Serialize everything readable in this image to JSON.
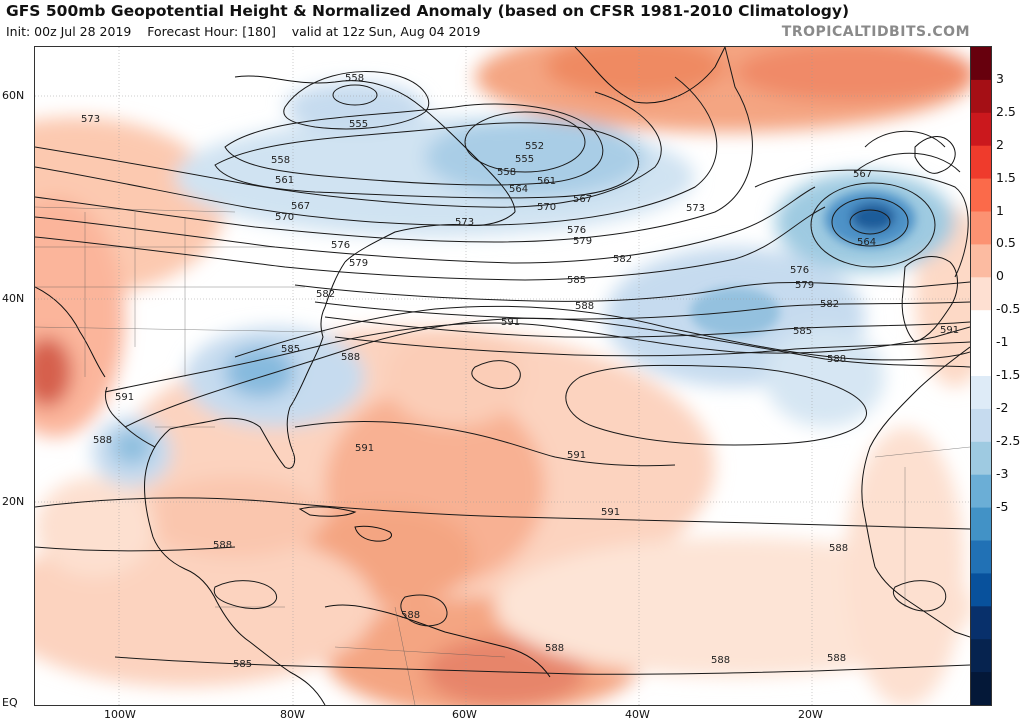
{
  "header": {
    "title": "GFS 500mb Geopotential Height & Normalized Anomaly (based on CFSR 1981-2010 Climatology)",
    "init": "Init: 00z Jul 28 2019",
    "forecast_hour": "Forecast Hour: [180]",
    "valid": "valid at 12z Sun, Aug 04 2019",
    "brand": "TROPICALTIDBITS.COM"
  },
  "axes": {
    "lat_labels": [
      "60N",
      "40N",
      "20N",
      "EQ"
    ],
    "lon_labels": [
      "100W",
      "80W",
      "60W",
      "40W",
      "20W"
    ]
  },
  "colorbar": {
    "labels": [
      "3",
      "2.5",
      "2",
      "1.5",
      "1",
      "0.5",
      "0",
      "-0.5",
      "-1",
      "-1.5",
      "-2",
      "-2.5",
      "-3",
      "-5"
    ],
    "range": [
      -5,
      3.5
    ],
    "colors": [
      "#67000d",
      "#a50f15",
      "#cb181d",
      "#ef3b2c",
      "#fb6a4a",
      "#fc9272",
      "#fcbba1",
      "#fee0d2",
      "#ffffff",
      "#ffffff",
      "#deebf7",
      "#c6dbef",
      "#9ecae1",
      "#6baed6",
      "#4292c6",
      "#2171b5",
      "#08519c",
      "#08306b",
      "#06234f",
      "#041838"
    ]
  },
  "contours": {
    "labels": [
      "558",
      "555",
      "552",
      "555",
      "558",
      "561",
      "564",
      "567",
      "570",
      "573",
      "576",
      "579",
      "582",
      "585",
      "588",
      "591",
      "567",
      "564",
      "573",
      "576",
      "579",
      "582",
      "585",
      "588",
      "591",
      "588",
      "591",
      "591",
      "591",
      "588",
      "588",
      "588",
      "585",
      "588",
      "588",
      "588",
      "573",
      "558",
      "561",
      "567",
      "570",
      "576",
      "579",
      "582",
      "585",
      "588",
      "591"
    ]
  }
}
